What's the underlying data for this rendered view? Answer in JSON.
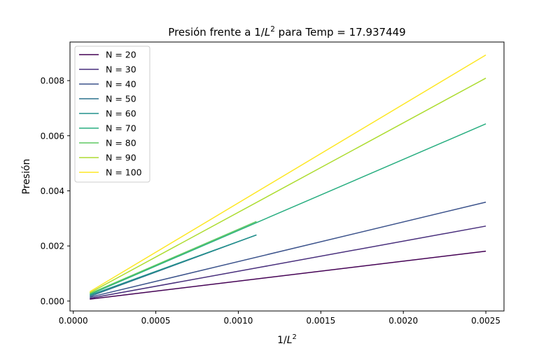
{
  "chart_data": {
    "type": "line",
    "title": "Presión frente a 1/L² para Temp = 17.937449",
    "title_parts": {
      "prefix": "Presión frente a 1/",
      "var": "L",
      "sup": "2",
      "suffix": " para Temp = 17.937449"
    },
    "xlabel": "1/L²",
    "xlabel_parts": {
      "prefix": "1/",
      "var": "L",
      "sup": "2"
    },
    "ylabel": "Presión",
    "xlim": [
      -2e-05,
      0.00261
    ],
    "ylim": [
      -0.00036,
      0.0094
    ],
    "xticks": [
      0.0,
      0.0005,
      0.001,
      0.0015,
      0.002,
      0.0025
    ],
    "xtick_labels": [
      "0.0000",
      "0.0005",
      "0.0010",
      "0.0015",
      "0.0020",
      "0.0025"
    ],
    "yticks": [
      0.0,
      0.002,
      0.004,
      0.006,
      0.008
    ],
    "ytick_labels": [
      "0.000",
      "0.002",
      "0.004",
      "0.006",
      "0.008"
    ],
    "grid": false,
    "legend_position": "top-left",
    "series": [
      {
        "name": "N = 20",
        "color": "#440154",
        "x": [
          0.0001,
          0.0025
        ],
        "y": [
          7e-05,
          0.00181
        ]
      },
      {
        "name": "N = 30",
        "color": "#472d7b",
        "x": [
          0.0001,
          0.0025
        ],
        "y": [
          0.0001,
          0.00272
        ]
      },
      {
        "name": "N = 40",
        "color": "#3b528b",
        "x": [
          0.0001,
          0.0025
        ],
        "y": [
          0.00014,
          0.00359
        ]
      },
      {
        "name": "N = 50",
        "color": "#2c728e",
        "x": [
          0.0001,
          0.00111
        ],
        "y": [
          0.00017,
          0.0024
        ]
      },
      {
        "name": "N = 60",
        "color": "#21918c",
        "x": [
          0.0001,
          0.00111
        ],
        "y": [
          0.00021,
          0.0024
        ]
      },
      {
        "name": "N = 70",
        "color": "#28ae80",
        "x": [
          0.0001,
          0.0025
        ],
        "y": [
          0.00024,
          0.00643
        ]
      },
      {
        "name": "N = 80",
        "color": "#5ec962",
        "x": [
          0.0001,
          0.00111
        ],
        "y": [
          0.00027,
          0.00289
        ]
      },
      {
        "name": "N = 90",
        "color": "#addc30",
        "x": [
          0.0001,
          0.0025
        ],
        "y": [
          0.0003,
          0.00809
        ]
      },
      {
        "name": "N = 100",
        "color": "#fde725",
        "x": [
          0.0001,
          0.0025
        ],
        "y": [
          0.00034,
          0.00893
        ]
      }
    ]
  }
}
